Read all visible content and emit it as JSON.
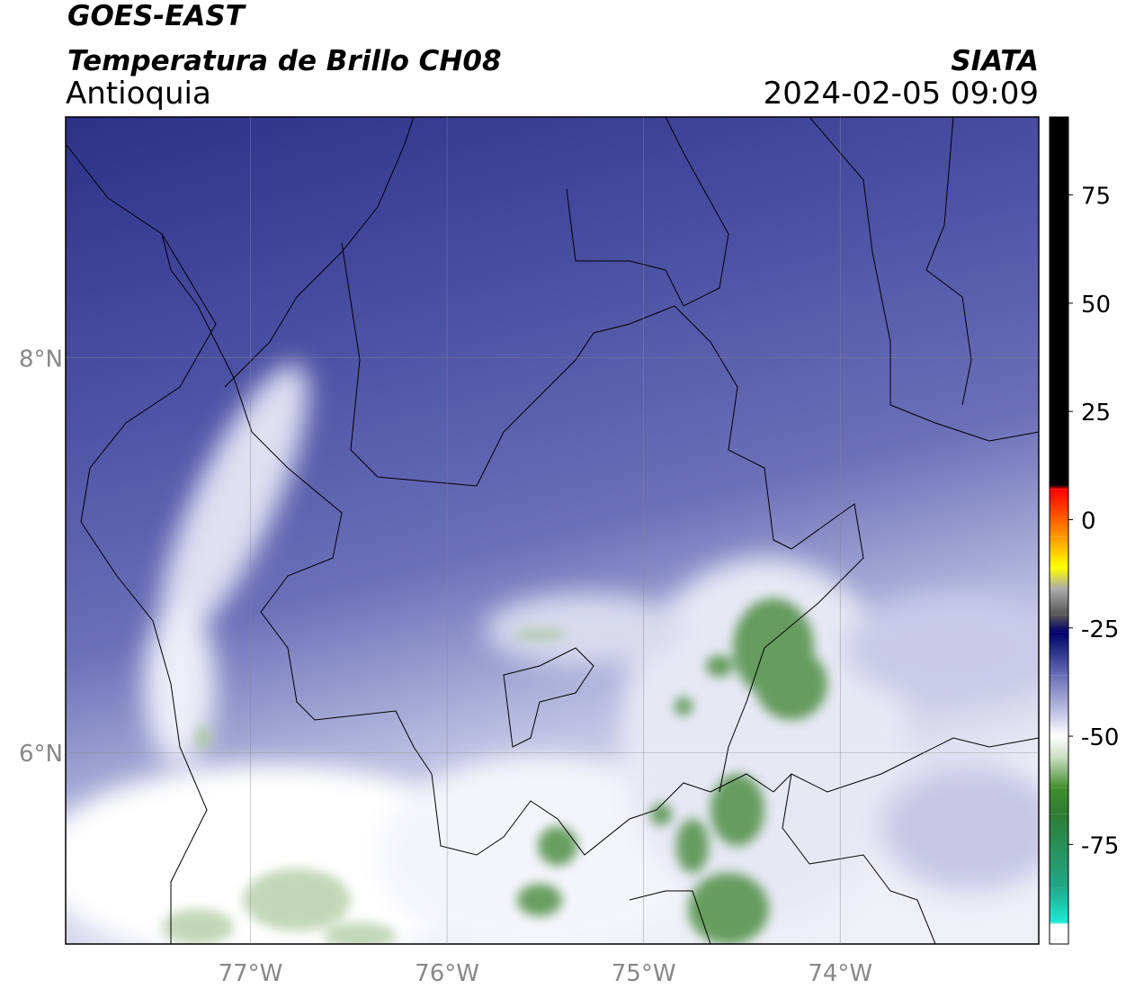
{
  "title": "GOES-EAST",
  "subtitle": "Temperatura de Brillo CH08",
  "region": "Antioquia",
  "source": "SIATA",
  "datetime": "2024-02-05 09:09",
  "map": {
    "xlim": [
      -77.94,
      -72.99
    ],
    "ylim": [
      5.03,
      9.22
    ],
    "xticks": [
      {
        "value": -77,
        "label": "77°W"
      },
      {
        "value": -76,
        "label": "76°W"
      },
      {
        "value": -75,
        "label": "75°W"
      },
      {
        "value": -74,
        "label": "74°W"
      }
    ],
    "yticks": [
      {
        "value": 6,
        "label": "6°N"
      },
      {
        "value": 8,
        "label": "8°N"
      }
    ],
    "grid": true
  },
  "colorbar": {
    "lim": [
      -98,
      93
    ],
    "ticks": [
      -75,
      -50,
      -25,
      0,
      25,
      50,
      75
    ],
    "stops": [
      {
        "value": -98,
        "color": "#ffffff"
      },
      {
        "value": -93.5,
        "color": "#ffffff"
      },
      {
        "value": -93,
        "color": "#1de9d6"
      },
      {
        "value": -85,
        "color": "#22a88a"
      },
      {
        "value": -68,
        "color": "#2e7d32"
      },
      {
        "value": -62,
        "color": "#3f8f2c"
      },
      {
        "value": -55,
        "color": "#c8dcc0"
      },
      {
        "value": -50,
        "color": "#ffffff"
      },
      {
        "value": -45,
        "color": "#c5c8e6"
      },
      {
        "value": -36,
        "color": "#6a6fb8"
      },
      {
        "value": -29,
        "color": "#1a237e"
      },
      {
        "value": -26,
        "color": "#00006e"
      },
      {
        "value": -22,
        "color": "#555555"
      },
      {
        "value": -16,
        "color": "#aaaaaa"
      },
      {
        "value": -11,
        "color": "#ffff00"
      },
      {
        "value": -4,
        "color": "#ff9800"
      },
      {
        "value": 7,
        "color": "#ff0000"
      },
      {
        "value": 8,
        "color": "#000000"
      },
      {
        "value": 93,
        "color": "#000000"
      }
    ]
  }
}
